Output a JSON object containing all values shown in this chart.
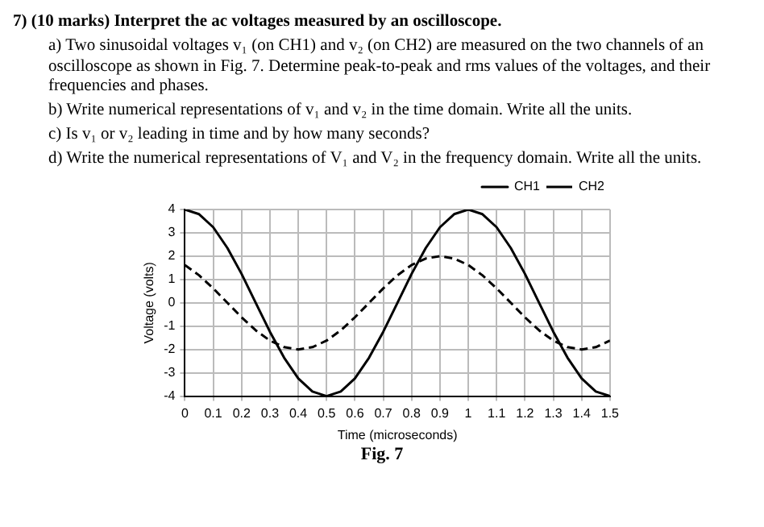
{
  "chart_data": {
    "type": "line",
    "title": "7) (10 marks) Interpret the ac voltages measured by an oscilloscope.",
    "annotations": [
      "a) Two sinusoidal voltages v₁ (on CH1) and v₂ (on CH2) are measured on the two channels of an oscilloscope as shown in Fig. 7. Determine peak-to-peak and rms values of the voltages, and their frequencies and phases.",
      "b) Write numerical representations of v₁ and v₂ in the time domain. Write all the units.",
      "c) Is v₁ or v₂ leading in time and by how many seconds?",
      "d) Write the numerical representations of V₁ and V₂ in the frequency domain. Write all the units.",
      "Fig. 7"
    ],
    "xlabel": "Time (microseconds)",
    "ylabel": "Voltage (volts)",
    "x": [
      0,
      0.05,
      0.1,
      0.15,
      0.2,
      0.25,
      0.3,
      0.35,
      0.4,
      0.45,
      0.5,
      0.55,
      0.6,
      0.65,
      0.7,
      0.75,
      0.8,
      0.85,
      0.9,
      0.95,
      1.0,
      1.05,
      1.1,
      1.15,
      1.2,
      1.25,
      1.3,
      1.35,
      1.4,
      1.45,
      1.5
    ],
    "series": [
      {
        "name": "CH1",
        "color": "#000000",
        "line_style": "solid",
        "values": [
          4,
          3.8,
          3.24,
          2.35,
          1.24,
          0,
          -1.24,
          -2.35,
          -3.24,
          -3.8,
          -4,
          -3.8,
          -3.24,
          -2.35,
          -1.24,
          0,
          1.24,
          2.35,
          3.24,
          3.8,
          4,
          3.8,
          3.24,
          2.35,
          1.24,
          0,
          -1.24,
          -2.35,
          -3.24,
          -3.8,
          -4
        ]
      },
      {
        "name": "CH2",
        "color": "#000000",
        "line_style": "dashed",
        "values": [
          1.62,
          1.18,
          0.62,
          0,
          -0.62,
          -1.18,
          -1.62,
          -1.9,
          -2,
          -1.9,
          -1.62,
          -1.18,
          -0.62,
          0,
          0.62,
          1.18,
          1.62,
          1.9,
          2,
          1.9,
          1.62,
          1.18,
          0.62,
          0,
          -0.62,
          -1.18,
          -1.62,
          -1.9,
          -2,
          -1.9,
          -1.62
        ]
      }
    ],
    "xlim": [
      0,
      1.5
    ],
    "xticks": [
      0,
      0.1,
      0.2,
      0.3,
      0.4,
      0.5,
      0.6,
      0.7,
      0.8,
      0.9,
      1,
      1.1,
      1.2,
      1.3,
      1.4,
      1.5
    ],
    "ylim": [
      -4,
      4
    ],
    "yticks": [
      -4,
      -3,
      -2,
      -1,
      0,
      1,
      2,
      3,
      4
    ],
    "grid": true,
    "legend": "top right",
    "marker": "none"
  }
}
